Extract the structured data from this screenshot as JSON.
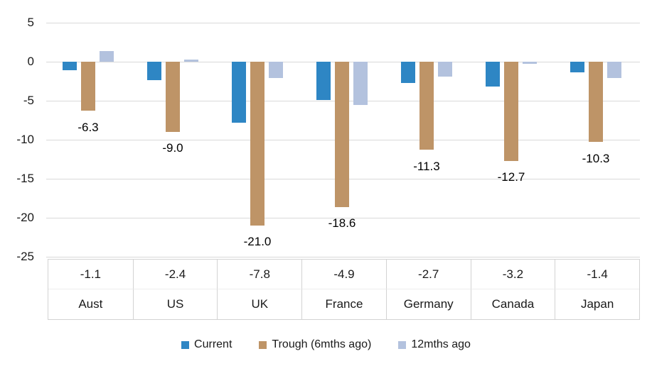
{
  "chart_data": {
    "type": "bar",
    "title": "",
    "categories": [
      "Aust",
      "US",
      "UK",
      "France",
      "Germany",
      "Canada",
      "Japan"
    ],
    "series": [
      {
        "name": "Current",
        "color": "#2E86C4",
        "values": [
          -1.1,
          -2.4,
          -7.8,
          -4.9,
          -2.7,
          -3.2,
          -1.4
        ]
      },
      {
        "name": "Trough (6mths ago)",
        "color": "#BE9467",
        "values": [
          -6.3,
          -9.0,
          -21.0,
          -18.6,
          -11.3,
          -12.7,
          -10.3
        ],
        "data_labels": [
          "-6.3",
          "-9.0",
          "-21.0",
          "-18.6",
          "-11.3",
          "-12.7",
          "-10.3"
        ]
      },
      {
        "name": "12mths ago",
        "color": "#B3C2DE",
        "values": [
          1.4,
          0.3,
          -2.1,
          -5.5,
          -1.9,
          -0.3,
          -2.1
        ]
      }
    ],
    "ylim": [
      -25,
      5
    ],
    "yticks": [
      "5",
      "0",
      "-5",
      "-10",
      "-15",
      "-20",
      "-25"
    ],
    "grid": true,
    "legend_position": "bottom",
    "category_table": {
      "values_row": [
        "-1.1",
        "-2.4",
        "-7.8",
        "-4.9",
        "-2.7",
        "-3.2",
        "-1.4"
      ],
      "labels_row": [
        "Aust",
        "US",
        "UK",
        "France",
        "Germany",
        "Canada",
        "Japan"
      ]
    },
    "colors": {
      "current": "#2E86C4",
      "trough": "#BE9467",
      "twelve_months": "#B3C2DE",
      "gridline": "#D9D9D9",
      "table_border": "#D3D3D3",
      "text": "#1A1A1A"
    }
  }
}
